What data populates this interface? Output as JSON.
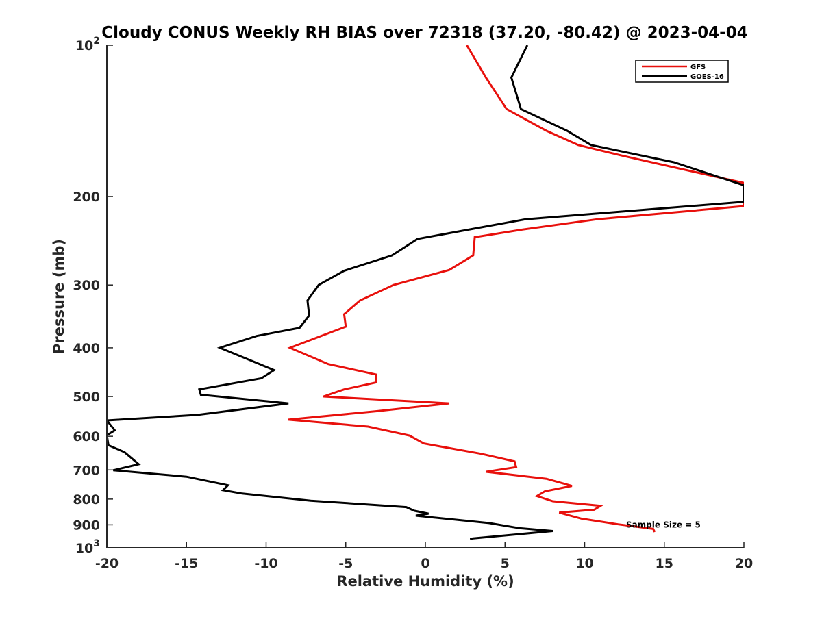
{
  "chart_data": {
    "type": "line",
    "title": "Cloudy CONUS Weekly RH BIAS over 72318 (37.20, -80.42) @ 2023-04-04",
    "xlabel": "Relative Humidity (%)",
    "ylabel": "Pressure (mb)",
    "xlim": [
      -20,
      20
    ],
    "ylim": [
      100,
      1000
    ],
    "yscale": "log",
    "yreversed": true,
    "grid": false,
    "legend_location": "top-right",
    "x_ticks": [
      "-20",
      "-15",
      "-10",
      "-5",
      "0",
      "5",
      "10",
      "15",
      "20"
    ],
    "x_tick_values": [
      -20,
      -15,
      -10,
      -5,
      0,
      5,
      10,
      15,
      20
    ],
    "y_ticks": [
      {
        "value": 100,
        "base": "10",
        "exp": "2"
      },
      {
        "value": 200,
        "label": "200"
      },
      {
        "value": 300,
        "label": "300"
      },
      {
        "value": 400,
        "label": "400"
      },
      {
        "value": 500,
        "label": "500"
      },
      {
        "value": 600,
        "label": "600"
      },
      {
        "value": 700,
        "label": "700"
      },
      {
        "value": 800,
        "label": "800"
      },
      {
        "value": 900,
        "label": "900"
      },
      {
        "value": 1000,
        "base": "10",
        "exp": "3"
      }
    ],
    "annotation": "Sample Size = 5",
    "annotation_pos": {
      "x": 12.6,
      "y": 900
    },
    "series": [
      {
        "name": "GFS",
        "color": "#e8100c",
        "points": [
          [
            2.6,
            100
          ],
          [
            3.8,
            116
          ],
          [
            5.1,
            134
          ],
          [
            7.6,
            148
          ],
          [
            9.6,
            158
          ],
          [
            12.4,
            166
          ],
          [
            15.6,
            175
          ],
          [
            20,
            188
          ],
          [
            20,
            209
          ],
          [
            10.8,
            222
          ],
          [
            6.0,
            233
          ],
          [
            3.1,
            241
          ],
          [
            3.0,
            262
          ],
          [
            1.5,
            280
          ],
          [
            -2.0,
            300
          ],
          [
            -4.1,
            322
          ],
          [
            -5.1,
            343
          ],
          [
            -5.0,
            363
          ],
          [
            -8.5,
            400
          ],
          [
            -6.1,
            431
          ],
          [
            -3.1,
            452
          ],
          [
            -3.1,
            469
          ],
          [
            -5.1,
            484
          ],
          [
            -6.4,
            500
          ],
          [
            1.5,
            516
          ],
          [
            -3.1,
            535
          ],
          [
            -8.6,
            556
          ],
          [
            -3.6,
            574
          ],
          [
            -1.0,
            598
          ],
          [
            -0.1,
            620
          ],
          [
            3.5,
            650
          ],
          [
            5.6,
            673
          ],
          [
            5.7,
            691
          ],
          [
            3.8,
            706
          ],
          [
            7.6,
            729
          ],
          [
            9.2,
            753
          ],
          [
            7.5,
            772
          ],
          [
            7.0,
            789
          ],
          [
            8.0,
            808
          ],
          [
            11.0,
            825
          ],
          [
            10.6,
            840
          ],
          [
            8.4,
            851
          ],
          [
            9.8,
            875
          ],
          [
            12.1,
            898
          ],
          [
            14.3,
            917
          ],
          [
            14.4,
            930
          ]
        ]
      },
      {
        "name": "GOES-16",
        "color": "#000000",
        "points": [
          [
            6.4,
            100
          ],
          [
            5.4,
            116
          ],
          [
            6.0,
            134
          ],
          [
            8.9,
            148
          ],
          [
            10.4,
            158
          ],
          [
            15.6,
            171
          ],
          [
            20,
            190
          ],
          [
            20,
            205
          ],
          [
            6.3,
            222
          ],
          [
            -0.5,
            243
          ],
          [
            -2.1,
            262
          ],
          [
            -5.1,
            281
          ],
          [
            -6.7,
            300
          ],
          [
            -7.4,
            322
          ],
          [
            -7.3,
            345
          ],
          [
            -7.9,
            365
          ],
          [
            -10.6,
            379
          ],
          [
            -12.9,
            400
          ],
          [
            -9.5,
            443
          ],
          [
            -10.3,
            460
          ],
          [
            -14.2,
            484
          ],
          [
            -14.1,
            496
          ],
          [
            -8.6,
            516
          ],
          [
            -14.3,
            544
          ],
          [
            -20.0,
            558
          ],
          [
            -19.5,
            584
          ],
          [
            -20.0,
            597
          ],
          [
            -19.9,
            625
          ],
          [
            -18.9,
            645
          ],
          [
            -18.0,
            682
          ],
          [
            -19.6,
            701
          ],
          [
            -15.0,
            722
          ],
          [
            -12.4,
            751
          ],
          [
            -12.7,
            768
          ],
          [
            -11.5,
            780
          ],
          [
            -7.2,
            806
          ],
          [
            -1.2,
            830
          ],
          [
            -0.7,
            844
          ],
          [
            0.2,
            855
          ],
          [
            -0.6,
            863
          ],
          [
            4.0,
            893
          ],
          [
            5.9,
            914
          ],
          [
            8.0,
            926
          ],
          [
            3.0,
            958
          ],
          [
            2.8,
            960
          ]
        ]
      }
    ]
  }
}
